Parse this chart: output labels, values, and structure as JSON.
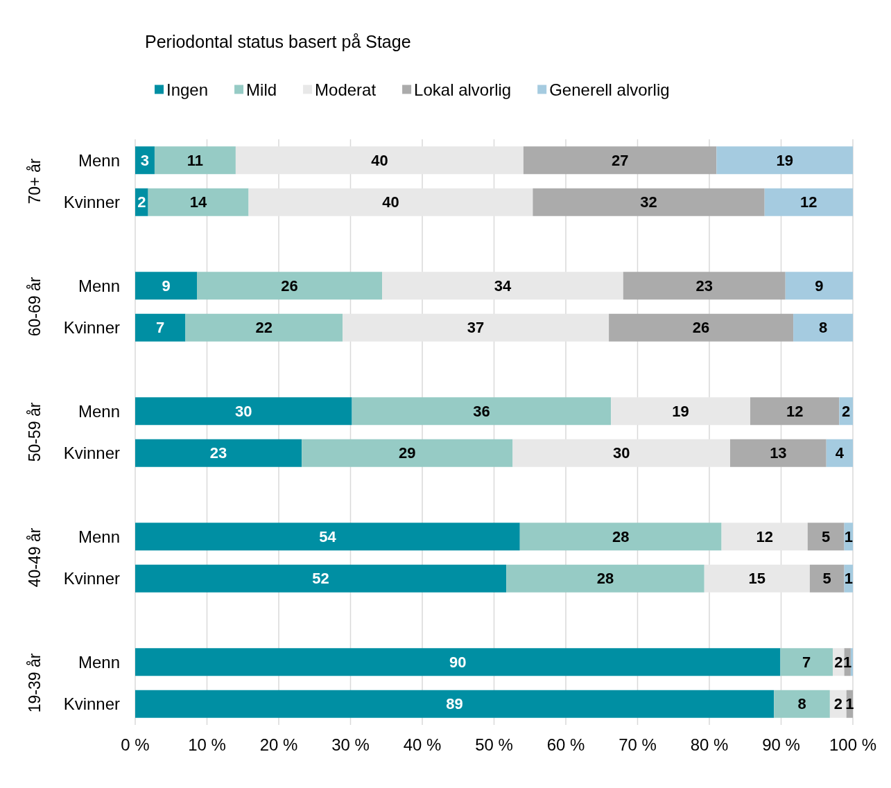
{
  "chart_data": [
    {
      "type": "bar",
      "orientation": "horizontal",
      "stacked": true,
      "title": "Periodontal status basert på Stage",
      "legend": "top left",
      "ylabel": "70+ år",
      "categories": [
        "Menn",
        "Kvinner"
      ],
      "series": [
        {
          "name": "Ingen",
          "color": "#008fa3",
          "values": [
            2.7,
            1.8
          ],
          "value_labels": [
            "3",
            "2"
          ]
        },
        {
          "name": "Mild",
          "color": "#96cbc5",
          "values": [
            11.3,
            14.0
          ],
          "value_labels": [
            "11",
            "14"
          ]
        },
        {
          "name": "Moderat",
          "color": "#e8e8e8",
          "values": [
            40.1,
            39.6
          ],
          "value_labels": [
            "40",
            "40"
          ]
        },
        {
          "name": "Lokal alvorlig",
          "color": "#ababab",
          "values": [
            26.9,
            32.3
          ],
          "value_labels": [
            "27",
            "32"
          ]
        },
        {
          "name": "Generell alvorlig",
          "color": "#a5cbe0",
          "values": [
            19.0,
            12.3
          ],
          "value_labels": [
            "19",
            "12"
          ]
        }
      ],
      "xlim": [
        0,
        100
      ],
      "xticks": [
        0,
        10,
        20,
        30,
        40,
        50,
        60,
        70,
        80,
        90,
        100
      ],
      "grid": "x",
      "tick_labels": "y"
    },
    {
      "type": "bar",
      "orientation": "horizontal",
      "stacked": true,
      "ylabel": "60-69 år",
      "categories": [
        "Menn",
        "Kvinner"
      ],
      "series": [
        {
          "color": "#008fa3",
          "values": [
            8.6,
            7.0
          ],
          "value_labels": [
            "9",
            "7"
          ]
        },
        {
          "color": "#96cbc5",
          "values": [
            25.8,
            21.9
          ],
          "value_labels": [
            "26",
            "22"
          ]
        },
        {
          "color": "#e8e8e8",
          "values": [
            33.6,
            37.1
          ],
          "value_labels": [
            "34",
            "37"
          ]
        },
        {
          "color": "#ababab",
          "values": [
            22.6,
            25.7
          ],
          "value_labels": [
            "23",
            "26"
          ]
        },
        {
          "color": "#a5cbe0",
          "values": [
            9.4,
            8.3
          ],
          "value_labels": [
            "9",
            "8"
          ]
        }
      ],
      "xlim": [
        0,
        100
      ],
      "xticks": [
        0,
        10,
        20,
        30,
        40,
        50,
        60,
        70,
        80,
        90,
        100
      ],
      "grid": "x",
      "tick_labels": "y"
    },
    {
      "type": "bar",
      "orientation": "horizontal",
      "stacked": true,
      "ylabel": "50-59 år",
      "categories": [
        "Menn",
        "Kvinner"
      ],
      "series": [
        {
          "color": "#008fa3",
          "values": [
            30.2,
            23.2
          ],
          "value_labels": [
            "30",
            "23"
          ]
        },
        {
          "color": "#96cbc5",
          "values": [
            36.1,
            29.4
          ],
          "value_labels": [
            "36",
            "29"
          ]
        },
        {
          "color": "#e8e8e8",
          "values": [
            19.4,
            30.3
          ],
          "value_labels": [
            "19",
            "30"
          ]
        },
        {
          "color": "#ababab",
          "values": [
            12.4,
            13.4
          ],
          "value_labels": [
            "12",
            "13"
          ]
        },
        {
          "color": "#a5cbe0",
          "values": [
            1.9,
            3.7
          ],
          "value_labels": [
            "2",
            "4"
          ]
        }
      ],
      "xlim": [
        0,
        100
      ],
      "xticks": [
        0,
        10,
        20,
        30,
        40,
        50,
        60,
        70,
        80,
        90,
        100
      ],
      "grid": "x",
      "tick_labels": "y"
    },
    {
      "type": "bar",
      "orientation": "horizontal",
      "stacked": true,
      "ylabel": "40-49 år",
      "categories": [
        "Menn",
        "Kvinner"
      ],
      "series": [
        {
          "color": "#008fa3",
          "values": [
            53.6,
            51.7
          ],
          "value_labels": [
            "54",
            "52"
          ]
        },
        {
          "color": "#96cbc5",
          "values": [
            28.1,
            27.6
          ],
          "value_labels": [
            "28",
            "28"
          ]
        },
        {
          "color": "#e8e8e8",
          "values": [
            12.0,
            14.7
          ],
          "value_labels": [
            "12",
            "15"
          ]
        },
        {
          "color": "#ababab",
          "values": [
            5.1,
            4.8
          ],
          "value_labels": [
            "5",
            "5"
          ]
        },
        {
          "color": "#a5cbe0",
          "values": [
            1.2,
            1.2
          ],
          "value_labels": [
            "1",
            "1"
          ]
        }
      ],
      "xlim": [
        0,
        100
      ],
      "xticks": [
        0,
        10,
        20,
        30,
        40,
        50,
        60,
        70,
        80,
        90,
        100
      ],
      "grid": "x",
      "tick_labels": "y"
    },
    {
      "type": "bar",
      "orientation": "horizontal",
      "stacked": true,
      "ylabel": "19-39 år",
      "categories": [
        "Menn",
        "Kvinner"
      ],
      "series": [
        {
          "color": "#008fa3",
          "values": [
            89.9,
            89.0
          ],
          "value_labels": [
            "90",
            "89"
          ]
        },
        {
          "color": "#96cbc5",
          "values": [
            7.3,
            7.8
          ],
          "value_labels": [
            "7",
            "8"
          ]
        },
        {
          "color": "#e8e8e8",
          "values": [
            1.6,
            2.3
          ],
          "value_labels": [
            "2",
            "2"
          ]
        },
        {
          "color": "#ababab",
          "values": [
            0.9,
            0.9
          ],
          "value_labels": [
            "1",
            "1"
          ]
        },
        {
          "color": "#a5cbe0",
          "values": [
            0.3,
            null
          ],
          "value_labels": [
            null,
            null
          ]
        }
      ],
      "xlim": [
        0,
        100
      ],
      "xticks": [
        {
          "value": 0,
          "label": "0 %"
        },
        {
          "value": 10,
          "label": "10 %"
        },
        {
          "value": 20,
          "label": "20 %"
        },
        {
          "value": 30,
          "label": "30 %"
        },
        {
          "value": 40,
          "label": "40 %"
        },
        {
          "value": 50,
          "label": "50 %"
        },
        {
          "value": 60,
          "label": "60 %"
        },
        {
          "value": 70,
          "label": "70 %"
        },
        {
          "value": 80,
          "label": "80 %"
        },
        {
          "value": 90,
          "label": "90 %"
        },
        {
          "value": 100,
          "label": "100 %"
        }
      ],
      "grid": "x"
    }
  ]
}
